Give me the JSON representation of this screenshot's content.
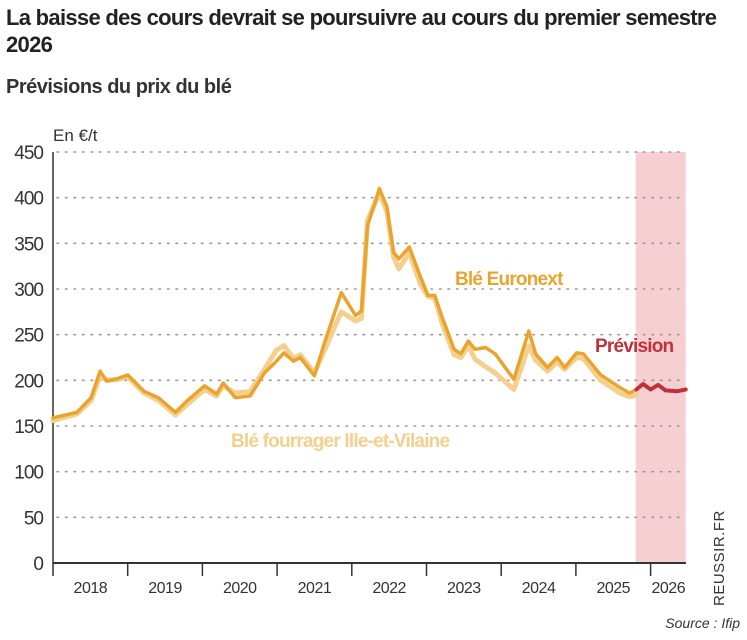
{
  "header": {
    "title": "La baisse des cours devrait se poursuivre au cours du premier semestre 2026",
    "subtitle": "Prévisions du prix du blé"
  },
  "footer": {
    "brand": "REUSSIR.FR",
    "source": "Source : Ifip"
  },
  "chart_data": {
    "type": "line",
    "title": "La baisse des cours devrait se poursuivre au cours du premier semestre 2026",
    "subtitle": "Prévisions du prix du blé",
    "ylabel": "En €/t",
    "ylim": [
      0,
      450
    ],
    "yticks": [
      0,
      50,
      100,
      150,
      200,
      250,
      300,
      350,
      400,
      450
    ],
    "xlim": [
      2018,
      2026.47
    ],
    "xticks": [
      "2018",
      "2019",
      "2020",
      "2021",
      "2022",
      "2023",
      "2024",
      "2025",
      "2026"
    ],
    "grid": "horizontal dotted",
    "forecast_region": {
      "label": "Prévision",
      "from": 2025.8,
      "to": 2026.47,
      "color": "#f5cfd2"
    },
    "series": [
      {
        "name": "Blé Euronext",
        "color": "#e9a430",
        "points": [
          [
            2018.0,
            159
          ],
          [
            2018.32,
            165
          ],
          [
            2018.51,
            181
          ],
          [
            2018.63,
            210
          ],
          [
            2018.72,
            199
          ],
          [
            2018.87,
            202
          ],
          [
            2019.0,
            206
          ],
          [
            2019.22,
            188
          ],
          [
            2019.41,
            181
          ],
          [
            2019.64,
            165
          ],
          [
            2019.8,
            178
          ],
          [
            2020.03,
            194
          ],
          [
            2020.19,
            185
          ],
          [
            2020.28,
            197
          ],
          [
            2020.44,
            181
          ],
          [
            2020.64,
            183
          ],
          [
            2020.83,
            208
          ],
          [
            2020.99,
            221
          ],
          [
            2021.09,
            230
          ],
          [
            2021.22,
            221
          ],
          [
            2021.31,
            225
          ],
          [
            2021.5,
            205
          ],
          [
            2021.63,
            240
          ],
          [
            2021.86,
            296
          ],
          [
            2022.05,
            271
          ],
          [
            2022.13,
            276
          ],
          [
            2022.21,
            369
          ],
          [
            2022.37,
            410
          ],
          [
            2022.47,
            390
          ],
          [
            2022.56,
            340
          ],
          [
            2022.63,
            333
          ],
          [
            2022.77,
            346
          ],
          [
            2022.92,
            313
          ],
          [
            2023.02,
            293
          ],
          [
            2023.11,
            293
          ],
          [
            2023.21,
            269
          ],
          [
            2023.37,
            234
          ],
          [
            2023.46,
            229
          ],
          [
            2023.56,
            243
          ],
          [
            2023.65,
            234
          ],
          [
            2023.79,
            236
          ],
          [
            2023.92,
            229
          ],
          [
            2024.17,
            201
          ],
          [
            2024.37,
            254
          ],
          [
            2024.46,
            229
          ],
          [
            2024.62,
            214
          ],
          [
            2024.75,
            225
          ],
          [
            2024.85,
            214
          ],
          [
            2025.01,
            230
          ],
          [
            2025.1,
            229
          ],
          [
            2025.33,
            206
          ],
          [
            2025.59,
            192
          ],
          [
            2025.72,
            186
          ],
          [
            2025.81,
            190
          ]
        ]
      },
      {
        "name": "Blé fourrager Ille-et-Vilaine",
        "color": "#f3d08e",
        "points": [
          [
            2018.0,
            156
          ],
          [
            2018.32,
            163
          ],
          [
            2018.51,
            178
          ],
          [
            2018.63,
            205
          ],
          [
            2018.72,
            200
          ],
          [
            2018.87,
            201
          ],
          [
            2019.0,
            204
          ],
          [
            2019.22,
            186
          ],
          [
            2019.41,
            178
          ],
          [
            2019.64,
            162
          ],
          [
            2019.8,
            174
          ],
          [
            2020.03,
            190
          ],
          [
            2020.19,
            183
          ],
          [
            2020.28,
            194
          ],
          [
            2020.44,
            186
          ],
          [
            2020.64,
            188
          ],
          [
            2020.83,
            212
          ],
          [
            2020.99,
            233
          ],
          [
            2021.09,
            238
          ],
          [
            2021.22,
            224
          ],
          [
            2021.31,
            228
          ],
          [
            2021.5,
            208
          ],
          [
            2021.63,
            232
          ],
          [
            2021.86,
            275
          ],
          [
            2022.05,
            265
          ],
          [
            2022.13,
            268
          ],
          [
            2022.21,
            375
          ],
          [
            2022.37,
            405
          ],
          [
            2022.47,
            385
          ],
          [
            2022.56,
            335
          ],
          [
            2022.63,
            322
          ],
          [
            2022.77,
            340
          ],
          [
            2022.92,
            305
          ],
          [
            2023.02,
            292
          ],
          [
            2023.11,
            290
          ],
          [
            2023.21,
            262
          ],
          [
            2023.37,
            228
          ],
          [
            2023.46,
            225
          ],
          [
            2023.56,
            238
          ],
          [
            2023.65,
            223
          ],
          [
            2023.79,
            215
          ],
          [
            2023.92,
            208
          ],
          [
            2024.17,
            190
          ],
          [
            2024.37,
            238
          ],
          [
            2024.46,
            222
          ],
          [
            2024.62,
            210
          ],
          [
            2024.75,
            220
          ],
          [
            2024.85,
            212
          ],
          [
            2025.01,
            225
          ],
          [
            2025.1,
            224
          ],
          [
            2025.33,
            200
          ],
          [
            2025.59,
            186
          ],
          [
            2025.72,
            182
          ],
          [
            2025.81,
            184
          ]
        ]
      },
      {
        "name": "Prévision",
        "color": "#c0313a",
        "points": [
          [
            2025.81,
            190
          ],
          [
            2025.9,
            196
          ],
          [
            2026.0,
            190
          ],
          [
            2026.1,
            195
          ],
          [
            2026.2,
            189
          ],
          [
            2026.35,
            188
          ],
          [
            2026.47,
            190
          ]
        ]
      }
    ]
  }
}
